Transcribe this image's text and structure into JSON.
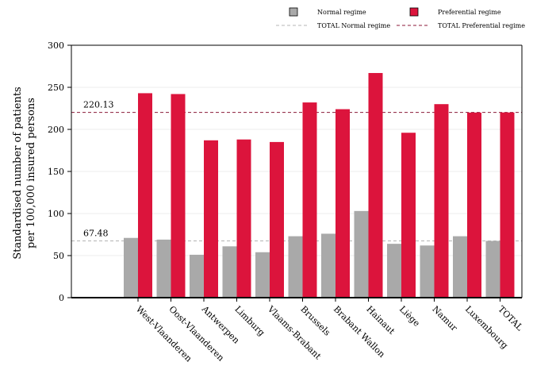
{
  "chart_data": {
    "type": "bar",
    "title": "",
    "ylabel": [
      "Standardised number of patients",
      "per 100,000 insured persons"
    ],
    "xlabel": "",
    "ylim": [
      0,
      300
    ],
    "yticks": [
      0,
      50,
      100,
      150,
      200,
      250,
      300
    ],
    "grid": true,
    "legend_position": "top-right",
    "categories": [
      "West-Vlaanderen",
      "Oost-Vlaanderen",
      "Antwerpen",
      "Limburg",
      "Vlaams-Brabant",
      "Brussels",
      "Brabant Wallon",
      "Hainaut",
      "Liège",
      "Namur",
      "Luxembourg",
      "TOTAL"
    ],
    "series": [
      {
        "name": "Normal regime",
        "color": "#a9a9a9",
        "values": [
          71,
          69,
          51,
          61,
          54,
          73,
          76,
          103,
          64,
          62,
          73,
          67.48
        ]
      },
      {
        "name": "Preferential regime",
        "color": "#dc143c",
        "values": [
          243,
          242,
          187,
          188,
          185,
          232,
          224,
          267,
          196,
          230,
          220,
          220.13
        ]
      }
    ],
    "reference_lines": [
      {
        "name": "TOTAL Normal regime",
        "value": 67.48,
        "label": "67.48",
        "color": "#b4b4b4"
      },
      {
        "name": "TOTAL Preferential regime",
        "value": 220.13,
        "label": "220.13",
        "color": "#8b1a3a"
      }
    ]
  }
}
